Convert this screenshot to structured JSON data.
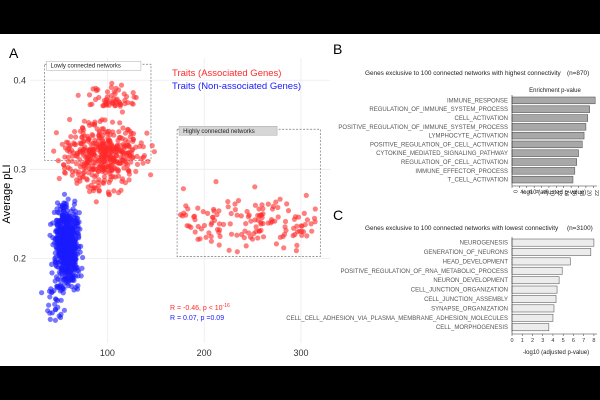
{
  "chart_data": [
    {
      "panel": "A",
      "type": "scatter",
      "ylabel": "Average pLI",
      "xlabel": "",
      "xlim": [
        20,
        330
      ],
      "ylim": [
        0.105,
        0.425
      ],
      "x_ticks": [
        100,
        200,
        300
      ],
      "y_ticks": [
        0.2,
        0.3,
        0.4
      ],
      "grid": true,
      "legend_position": "top-right",
      "series": [
        {
          "name": "Traits (Associated Genes)",
          "color": "#ff2a2a"
        },
        {
          "name": "Traits (Non-associated Genes)",
          "color": "#1a1aff"
        }
      ],
      "boxes": [
        {
          "label": "Lowly connected networks",
          "x": [
            35,
            145
          ],
          "y": [
            0.31,
            0.418
          ]
        },
        {
          "label": "Highly connected networks",
          "x": [
            172,
            320
          ],
          "y": [
            0.202,
            0.345
          ]
        }
      ],
      "annotations": [
        {
          "text": "R = -0.46, p < 10",
          "sup": "-16",
          "color": "#ff2a2a"
        },
        {
          "text": "R = 0.07, p =0.09",
          "color": "#1a1aff"
        }
      ]
    },
    {
      "panel": "B",
      "type": "bar",
      "orientation": "horizontal",
      "title": "Genes exclusive to 100 connected networks with highest connectivity",
      "n_label": "(n=870)",
      "top_label": "Enrichment p-value",
      "xlabel": "-log10 (adjusted p-value)",
      "x_ticks": [
        0,
        2,
        4,
        6,
        8,
        10,
        12,
        14,
        16,
        18,
        20,
        22
      ],
      "xlim": [
        0,
        23
      ],
      "bar_color": "#a8a8a8",
      "categories": [
        "IMMUNE_RESPONSE",
        "REGULATION_OF_IMMUNE_SYSTEM_PROCESS",
        "CELL_ACTIVATION",
        "POSITIVE_REGULATION_OF_IMMUNE_SYSTEM_PROCESS",
        "LYMPHOCYTE_ACTIVATION",
        "POSITIVE_REGULATION_OF_CELL_ACTIVATION",
        "CYTOKINE_MEDIATED_SIGNALING_PATHWAY",
        "REGULATION_OF_CELL_ACTIVATION",
        "IMMUNE_EFFECTOR_PROCESS",
        "T_CELL_ACTIVATION"
      ],
      "values": [
        22.5,
        21,
        20.5,
        20,
        19.5,
        19,
        18,
        17.5,
        17,
        16.5
      ]
    },
    {
      "panel": "C",
      "type": "bar",
      "orientation": "horizontal",
      "title": "Genes exclusive to 100 connected networks with lowest connectivity",
      "n_label": "(n=3100)",
      "xlabel": "-log10 (adjusted p-value)",
      "x_ticks": [
        0,
        1,
        2,
        3,
        4,
        5,
        6,
        7,
        8
      ],
      "xlim": [
        0,
        8.3
      ],
      "bar_color": "#ececec",
      "categories": [
        "NEUROGENESIS",
        "GENERATION_OF_NEURONS",
        "HEAD_DEVELOPMENT",
        "POSITIVE_REGULATION_OF_RNA_METABOLIC_PROCESS",
        "NEURON_DEVELOPMENT",
        "CELL_JUNCTION_ORGANIZATION",
        "CELL_JUNCTION_ASSEMBLY",
        "SYNAPSE_ORGANIZATION",
        "CELL_CELL_ADHESION_VIA_PLASMA_MEMBRANE_ADHESION_MOLECULES",
        "CELL_MORPHOGENESIS"
      ],
      "values": [
        8,
        7.7,
        5.7,
        4.9,
        4.6,
        4.4,
        4.3,
        4.1,
        4.0,
        3.6
      ]
    }
  ],
  "panel_labels": {
    "a": "A",
    "b": "B",
    "c": "C"
  }
}
